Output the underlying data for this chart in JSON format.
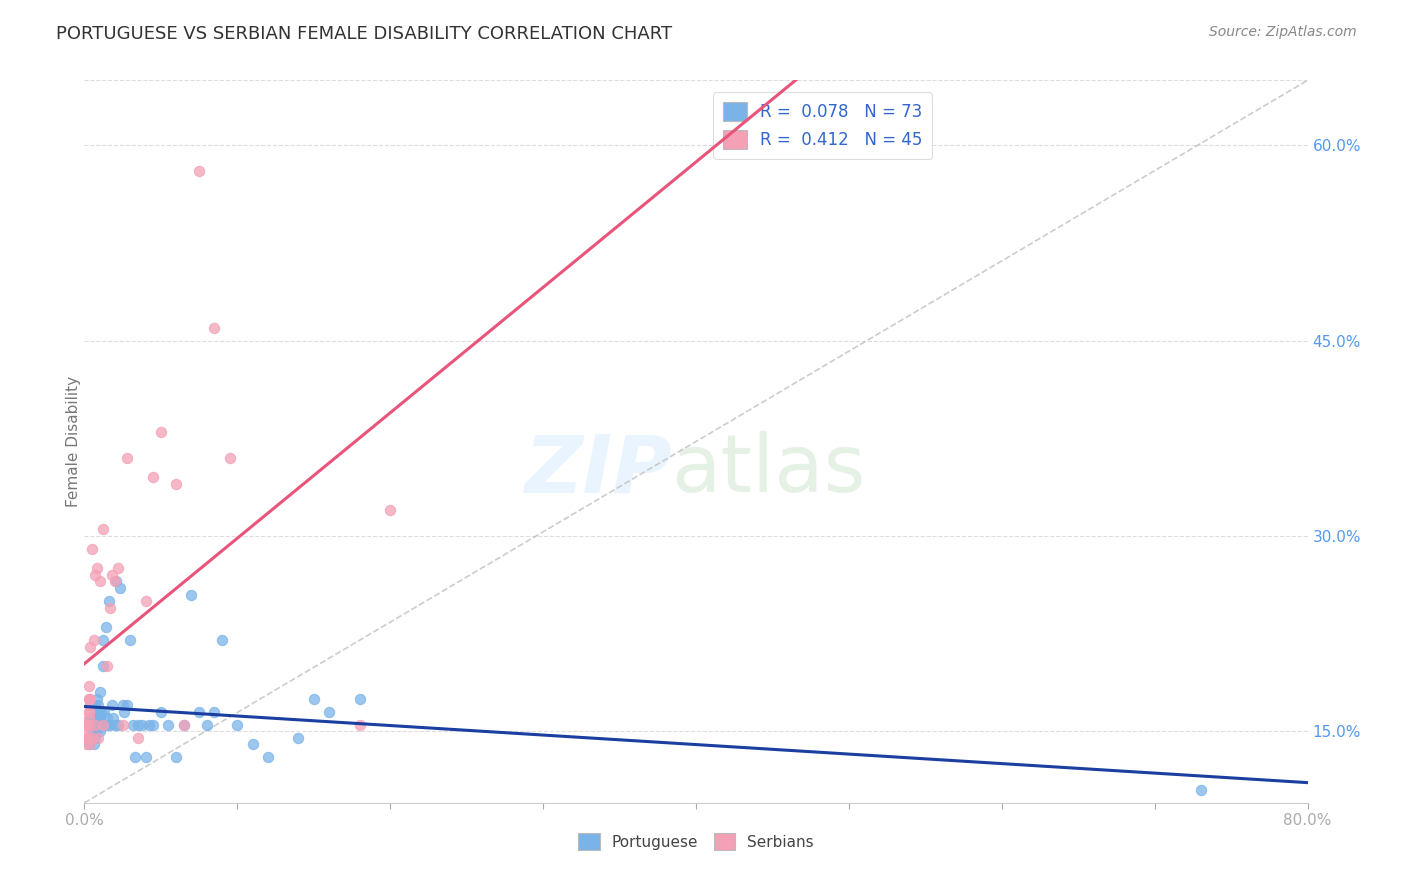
{
  "title": "PORTUGUESE VS SERBIAN FEMALE DISABILITY CORRELATION CHART",
  "source": "Source: ZipAtlas.com",
  "ylabel": "Female Disability",
  "right_yticks": [
    "15.0%",
    "30.0%",
    "45.0%",
    "60.0%"
  ],
  "right_ytick_vals": [
    0.15,
    0.3,
    0.45,
    0.6
  ],
  "xlim": [
    0.0,
    0.8
  ],
  "ylim": [
    0.095,
    0.65
  ],
  "legend1_R": "0.078",
  "legend1_N": "73",
  "legend2_R": "0.412",
  "legend2_N": "45",
  "portuguese_color": "#7ab3e8",
  "serbian_color": "#f4a0b5",
  "portuguese_line_color": "#1a3fa0",
  "serbian_line_color": "#e8547a",
  "diagonal_color": "#c0c0c0",
  "portuguese_x": [
    0.002,
    0.003,
    0.003,
    0.004,
    0.004,
    0.005,
    0.005,
    0.005,
    0.005,
    0.005,
    0.006,
    0.006,
    0.006,
    0.006,
    0.007,
    0.007,
    0.007,
    0.007,
    0.008,
    0.008,
    0.008,
    0.008,
    0.009,
    0.009,
    0.01,
    0.01,
    0.01,
    0.01,
    0.011,
    0.011,
    0.012,
    0.012,
    0.013,
    0.013,
    0.014,
    0.015,
    0.015,
    0.016,
    0.017,
    0.018,
    0.019,
    0.02,
    0.021,
    0.022,
    0.023,
    0.025,
    0.026,
    0.028,
    0.03,
    0.032,
    0.033,
    0.035,
    0.038,
    0.04,
    0.042,
    0.045,
    0.05,
    0.055,
    0.06,
    0.065,
    0.07,
    0.075,
    0.08,
    0.085,
    0.09,
    0.1,
    0.11,
    0.12,
    0.14,
    0.15,
    0.16,
    0.18,
    0.73
  ],
  "portuguese_y": [
    0.155,
    0.145,
    0.14,
    0.16,
    0.17,
    0.145,
    0.15,
    0.155,
    0.16,
    0.155,
    0.17,
    0.14,
    0.15,
    0.155,
    0.145,
    0.16,
    0.155,
    0.17,
    0.175,
    0.165,
    0.15,
    0.16,
    0.165,
    0.17,
    0.15,
    0.16,
    0.18,
    0.16,
    0.155,
    0.165,
    0.2,
    0.22,
    0.155,
    0.165,
    0.23,
    0.16,
    0.155,
    0.25,
    0.155,
    0.17,
    0.16,
    0.155,
    0.265,
    0.155,
    0.26,
    0.17,
    0.165,
    0.17,
    0.22,
    0.155,
    0.13,
    0.155,
    0.155,
    0.13,
    0.155,
    0.155,
    0.165,
    0.155,
    0.13,
    0.155,
    0.255,
    0.165,
    0.155,
    0.165,
    0.22,
    0.155,
    0.14,
    0.13,
    0.145,
    0.175,
    0.165,
    0.175,
    0.105
  ],
  "serbian_x": [
    0.001,
    0.001,
    0.002,
    0.002,
    0.002,
    0.002,
    0.002,
    0.003,
    0.003,
    0.003,
    0.003,
    0.003,
    0.003,
    0.003,
    0.004,
    0.004,
    0.004,
    0.005,
    0.005,
    0.006,
    0.007,
    0.007,
    0.008,
    0.009,
    0.01,
    0.012,
    0.012,
    0.015,
    0.017,
    0.018,
    0.02,
    0.022,
    0.025,
    0.028,
    0.035,
    0.04,
    0.045,
    0.05,
    0.06,
    0.065,
    0.075,
    0.085,
    0.095,
    0.18,
    0.2
  ],
  "serbian_y": [
    0.155,
    0.14,
    0.15,
    0.145,
    0.155,
    0.155,
    0.145,
    0.165,
    0.175,
    0.16,
    0.175,
    0.185,
    0.165,
    0.155,
    0.14,
    0.175,
    0.215,
    0.145,
    0.29,
    0.22,
    0.27,
    0.155,
    0.275,
    0.145,
    0.265,
    0.155,
    0.305,
    0.2,
    0.245,
    0.27,
    0.265,
    0.275,
    0.155,
    0.36,
    0.145,
    0.25,
    0.345,
    0.38,
    0.34,
    0.155,
    0.58,
    0.46,
    0.36,
    0.155,
    0.32
  ],
  "background_color": "#ffffff"
}
